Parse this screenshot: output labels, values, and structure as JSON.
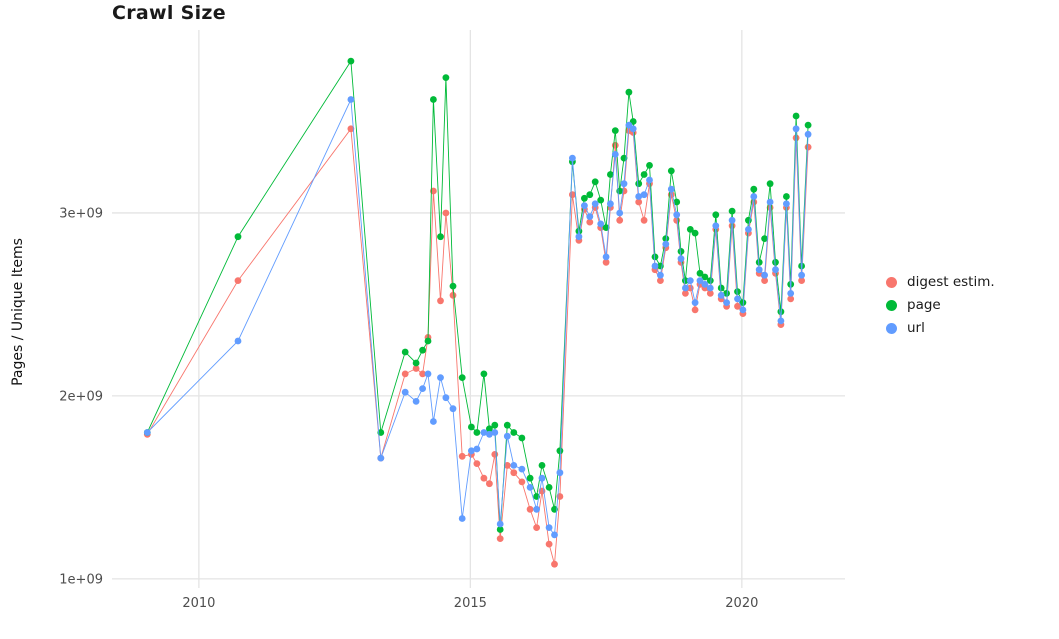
{
  "page": {
    "title": "Crawl Size"
  },
  "chart_data": {
    "type": "line",
    "marker": "circle",
    "title": "Crawl Size",
    "xlabel": "",
    "ylabel": "Pages / Unique Items",
    "grid": true,
    "grid_color": "#e4e4e4",
    "legend_position": "right",
    "y_values_unit": "billions (1e9)",
    "xlim": [
      2008.4,
      2021.9
    ],
    "ylim": [
      0.95,
      4.0
    ],
    "x_ticks": [
      {
        "value": 2010,
        "label": "2010"
      },
      {
        "value": 2015,
        "label": "2015"
      },
      {
        "value": 2020,
        "label": "2020"
      }
    ],
    "y_ticks": [
      {
        "value": 1,
        "label": "1e+09"
      },
      {
        "value": 2,
        "label": "2e+09"
      },
      {
        "value": 3,
        "label": "3e+09"
      }
    ],
    "x": [
      2009.05,
      2010.72,
      2012.8,
      2013.35,
      2013.8,
      2014.0,
      2014.12,
      2014.22,
      2014.32,
      2014.45,
      2014.55,
      2014.68,
      2014.85,
      2015.02,
      2015.12,
      2015.25,
      2015.35,
      2015.45,
      2015.55,
      2015.68,
      2015.8,
      2015.95,
      2016.1,
      2016.22,
      2016.32,
      2016.45,
      2016.55,
      2016.65,
      2016.88,
      2017.0,
      2017.1,
      2017.2,
      2017.3,
      2017.4,
      2017.5,
      2017.58,
      2017.67,
      2017.75,
      2017.83,
      2017.92,
      2018.0,
      2018.1,
      2018.2,
      2018.3,
      2018.4,
      2018.5,
      2018.6,
      2018.7,
      2018.8,
      2018.88,
      2018.96,
      2019.05,
      2019.14,
      2019.23,
      2019.32,
      2019.42,
      2019.52,
      2019.62,
      2019.72,
      2019.82,
      2019.92,
      2020.02,
      2020.12,
      2020.22,
      2020.32,
      2020.42,
      2020.52,
      2020.62,
      2020.72,
      2020.82,
      2020.9,
      2021.0,
      2021.1,
      2021.22
    ],
    "series": [
      {
        "id": "digest",
        "name": "digest estim.",
        "color": "#F8766D",
        "values": [
          1.79,
          2.63,
          3.46,
          1.66,
          2.12,
          2.15,
          2.12,
          2.32,
          3.12,
          2.52,
          3.0,
          2.55,
          1.67,
          1.68,
          1.63,
          1.55,
          1.52,
          1.68,
          1.22,
          1.62,
          1.58,
          1.53,
          1.38,
          1.28,
          1.48,
          1.19,
          1.08,
          1.45,
          3.1,
          2.85,
          3.02,
          2.95,
          3.03,
          2.92,
          2.73,
          3.03,
          3.37,
          2.96,
          3.12,
          3.45,
          3.44,
          3.06,
          2.96,
          3.16,
          2.69,
          2.63,
          2.81,
          3.1,
          2.96,
          2.73,
          2.56,
          2.59,
          2.47,
          2.61,
          2.59,
          2.56,
          2.91,
          2.53,
          2.49,
          2.93,
          2.49,
          2.45,
          2.89,
          3.06,
          2.67,
          2.63,
          3.03,
          2.67,
          2.39,
          3.03,
          2.53,
          3.41,
          2.63,
          3.36
        ]
      },
      {
        "id": "page",
        "name": "page",
        "color": "#00BA38",
        "values": [
          1.8,
          2.87,
          3.83,
          1.8,
          2.24,
          2.18,
          2.25,
          2.3,
          3.62,
          2.87,
          3.74,
          2.6,
          2.1,
          1.83,
          1.8,
          2.12,
          1.82,
          1.84,
          1.27,
          1.84,
          1.8,
          1.77,
          1.55,
          1.45,
          1.62,
          1.5,
          1.38,
          1.7,
          3.28,
          2.9,
          3.08,
          3.1,
          3.17,
          3.07,
          2.92,
          3.21,
          3.45,
          3.12,
          3.3,
          3.66,
          3.5,
          3.16,
          3.21,
          3.26,
          2.76,
          2.71,
          2.86,
          3.23,
          3.06,
          2.79,
          2.63,
          2.91,
          2.89,
          2.67,
          2.65,
          2.63,
          2.99,
          2.59,
          2.56,
          3.01,
          2.57,
          2.51,
          2.96,
          3.13,
          2.73,
          2.86,
          3.16,
          2.73,
          2.46,
          3.09,
          2.61,
          3.53,
          2.71,
          3.48
        ]
      },
      {
        "id": "url",
        "name": "url",
        "color": "#619CFF",
        "values": [
          1.8,
          2.3,
          3.62,
          1.66,
          2.02,
          1.97,
          2.04,
          2.12,
          1.86,
          2.1,
          1.99,
          1.93,
          1.33,
          1.7,
          1.71,
          1.8,
          1.79,
          1.8,
          1.3,
          1.78,
          1.62,
          1.6,
          1.5,
          1.38,
          1.55,
          1.28,
          1.24,
          1.58,
          3.3,
          2.87,
          3.04,
          2.98,
          3.05,
          2.94,
          2.76,
          3.05,
          3.32,
          3.0,
          3.16,
          3.48,
          3.46,
          3.09,
          3.1,
          3.18,
          2.71,
          2.66,
          2.83,
          3.13,
          2.99,
          2.75,
          2.59,
          2.63,
          2.51,
          2.63,
          2.61,
          2.59,
          2.93,
          2.55,
          2.51,
          2.96,
          2.53,
          2.47,
          2.91,
          3.09,
          2.69,
          2.66,
          3.06,
          2.69,
          2.41,
          3.05,
          2.56,
          3.46,
          2.66,
          3.43
        ]
      }
    ]
  }
}
